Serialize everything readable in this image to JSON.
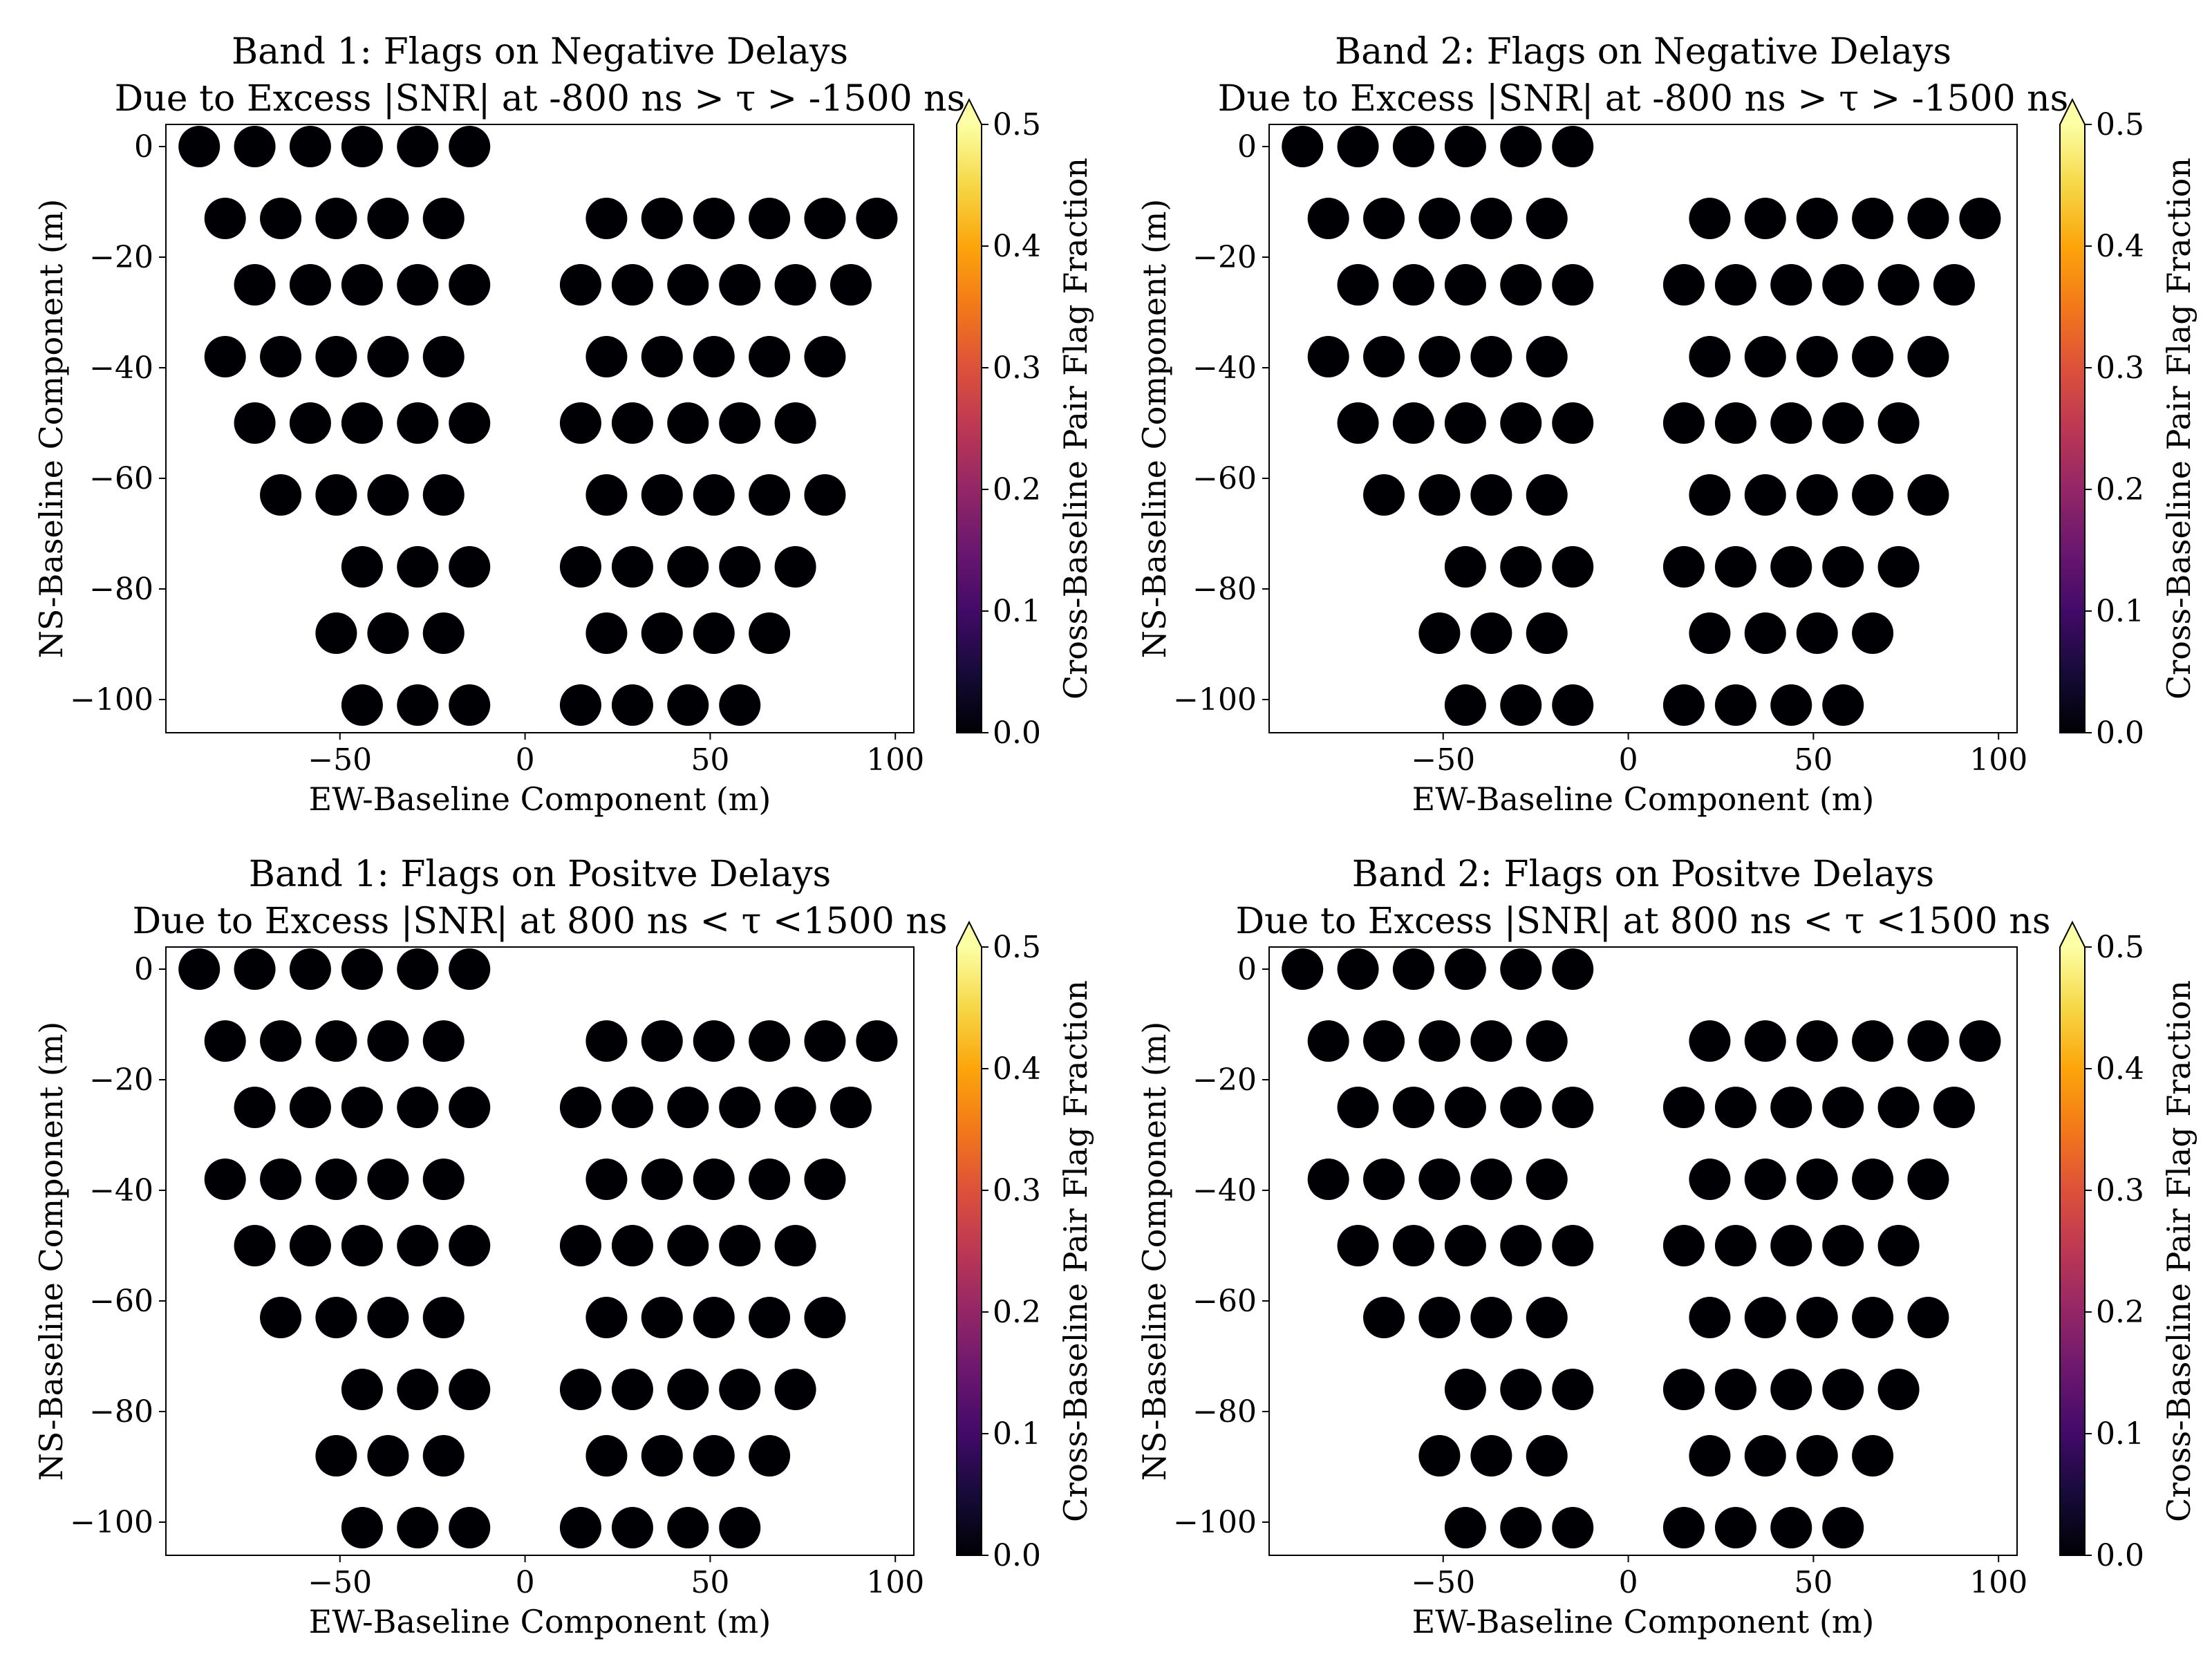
{
  "colorbar": {
    "label": "Cross-Baseline Pair Flag Fraction",
    "ticks": [
      "0.0",
      "0.1",
      "0.2",
      "0.3",
      "0.4",
      "0.5"
    ],
    "range": [
      0.0,
      0.5
    ],
    "colormap": "inferno",
    "extend": "max"
  },
  "chart_data": [
    {
      "type": "scatter",
      "title": "Band 1: Flags on Negative Delays",
      "subtitle": "Due to Excess |SNR| at -800 ns > τ > -1500 ns",
      "xlabel": "EW-Baseline Component (m)",
      "ylabel": "NS-Baseline Component (m)",
      "xlim": [
        -97,
        105
      ],
      "ylim": [
        -106,
        4
      ],
      "xticks": [
        "−50",
        "0",
        "50",
        "100"
      ],
      "yticks": [
        "0",
        "−20",
        "−40",
        "−60",
        "−80",
        "−100"
      ],
      "grid": false,
      "point_value": 0.0,
      "point_color": "#000004"
    },
    {
      "type": "scatter",
      "title": "Band 2: Flags on Negative Delays",
      "subtitle": "Due to Excess |SNR| at -800 ns > τ > -1500 ns",
      "xlabel": "EW-Baseline Component (m)",
      "ylabel": "NS-Baseline Component (m)",
      "xlim": [
        -97,
        105
      ],
      "ylim": [
        -106,
        4
      ],
      "xticks": [
        "−50",
        "0",
        "50",
        "100"
      ],
      "yticks": [
        "0",
        "−20",
        "−40",
        "−60",
        "−80",
        "−100"
      ],
      "grid": false,
      "point_value": 0.0,
      "point_color": "#000004"
    },
    {
      "type": "scatter",
      "title": "Band 1: Flags on Positve Delays",
      "subtitle": "Due to Excess |SNR| at 800 ns < τ <1500 ns",
      "xlabel": "EW-Baseline Component (m)",
      "ylabel": "NS-Baseline Component (m)",
      "xlim": [
        -97,
        105
      ],
      "ylim": [
        -106,
        4
      ],
      "xticks": [
        "−50",
        "0",
        "50",
        "100"
      ],
      "yticks": [
        "0",
        "−20",
        "−40",
        "−60",
        "−80",
        "−100"
      ],
      "grid": false,
      "point_value": 0.0,
      "point_color": "#000004"
    },
    {
      "type": "scatter",
      "title": "Band 2: Flags on Positve Delays",
      "subtitle": "Due to Excess |SNR| at 800 ns < τ <1500 ns",
      "xlabel": "EW-Baseline Component (m)",
      "ylabel": "NS-Baseline Component (m)",
      "xlim": [
        -97,
        105
      ],
      "ylim": [
        -106,
        4
      ],
      "xticks": [
        "−50",
        "0",
        "50",
        "100"
      ],
      "yticks": [
        "0",
        "−20",
        "−40",
        "−60",
        "−80",
        "−100"
      ],
      "grid": false,
      "point_value": 0.0,
      "point_color": "#000004"
    }
  ],
  "baseline_points": {
    "rows": [
      {
        "y": 0,
        "x": [
          -88,
          -73,
          -58,
          -44,
          -29,
          -15
        ]
      },
      {
        "y": -13,
        "x": [
          -81,
          -66,
          -51,
          -37,
          -22,
          22,
          37,
          51,
          66,
          81,
          95
        ]
      },
      {
        "y": -25,
        "x": [
          -73,
          -58,
          -44,
          -29,
          -15,
          15,
          29,
          44,
          58,
          73,
          88
        ]
      },
      {
        "y": -38,
        "x": [
          -81,
          -66,
          -51,
          -37,
          -22,
          22,
          37,
          51,
          66,
          81
        ]
      },
      {
        "y": -50,
        "x": [
          -73,
          -58,
          -44,
          -29,
          -15,
          15,
          29,
          44,
          58,
          73
        ]
      },
      {
        "y": -63,
        "x": [
          -66,
          -51,
          -37,
          -22,
          22,
          37,
          51,
          66,
          81
        ]
      },
      {
        "y": -76,
        "x": [
          -44,
          -29,
          -15,
          15,
          29,
          44,
          58,
          73
        ]
      },
      {
        "y": -88,
        "x": [
          -51,
          -37,
          -22,
          22,
          37,
          51,
          66
        ]
      },
      {
        "y": -101,
        "x": [
          -44,
          -29,
          -15,
          15,
          29,
          44,
          58
        ]
      }
    ]
  }
}
